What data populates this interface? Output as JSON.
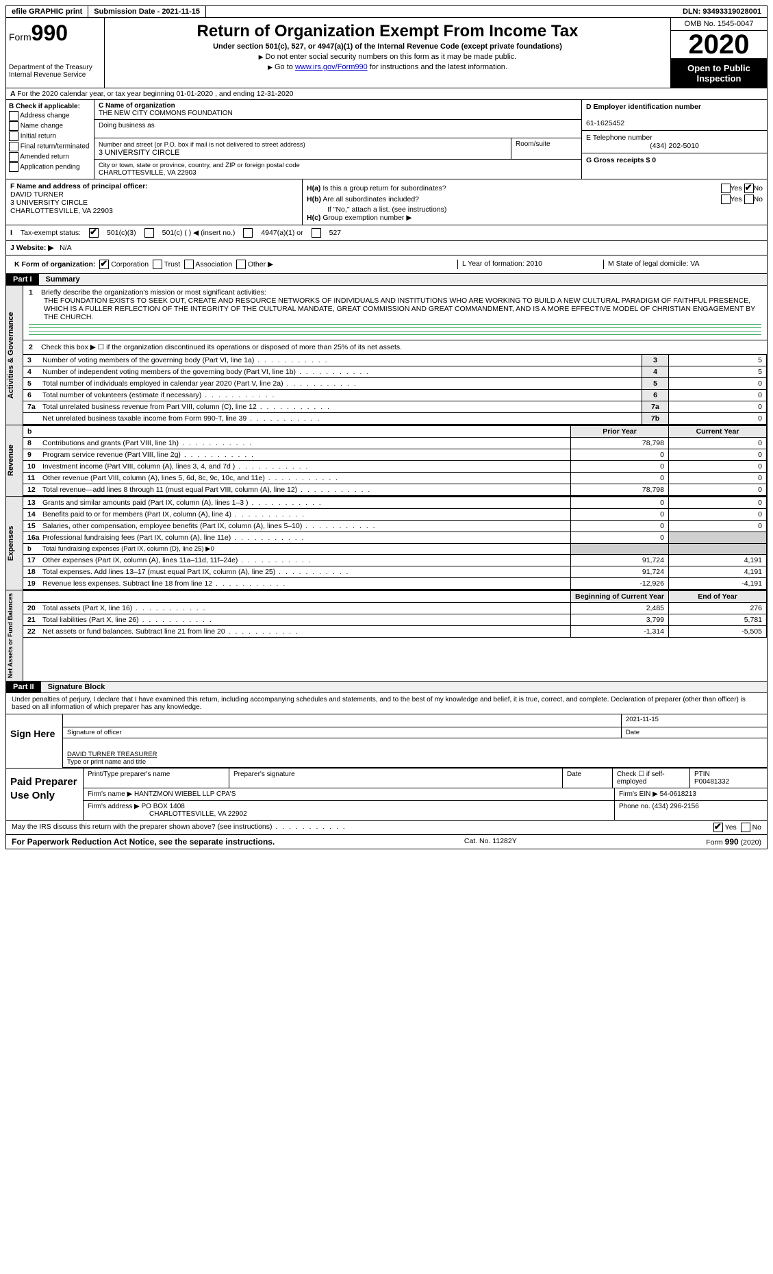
{
  "top": {
    "efile": "efile GRAPHIC print",
    "submission": "Submission Date - 2021-11-15",
    "dln": "DLN: 93493319028001"
  },
  "header": {
    "form_prefix": "Form",
    "form_no": "990",
    "dept": "Department of the Treasury\nInternal Revenue Service",
    "title": "Return of Organization Exempt From Income Tax",
    "subtitle": "Under section 501(c), 527, or 4947(a)(1) of the Internal Revenue Code (except private foundations)",
    "note1": "Do not enter social security numbers on this form as it may be made public.",
    "note2_pre": "Go to ",
    "note2_link": "www.irs.gov/Form990",
    "note2_post": " for instructions and the latest information.",
    "omb": "OMB No. 1545-0047",
    "year": "2020",
    "open": "Open to Public Inspection"
  },
  "A": "For the 2020 calendar year, or tax year beginning 01-01-2020   , and ending 12-31-2020",
  "B": {
    "hdr": "B Check if applicable:",
    "opts": [
      "Address change",
      "Name change",
      "Initial return",
      "Final return/terminated",
      "Amended return",
      "Application pending"
    ]
  },
  "C": {
    "name_lbl": "C Name of organization",
    "name": "THE NEW CITY COMMONS FOUNDATION",
    "dba_lbl": "Doing business as",
    "dba": "",
    "street_lbl": "Number and street (or P.O. box if mail is not delivered to street address)",
    "street": "3 UNIVERSITY CIRCLE",
    "suite_lbl": "Room/suite",
    "city_lbl": "City or town, state or province, country, and ZIP or foreign postal code",
    "city": "CHARLOTTESVILLE, VA  22903"
  },
  "D": {
    "lbl": "D Employer identification number",
    "val": "61-1625452"
  },
  "E": {
    "lbl": "E Telephone number",
    "val": "(434) 202-5010"
  },
  "G": {
    "lbl": "G Gross receipts $ 0"
  },
  "F": {
    "lbl": "F  Name and address of principal officer:",
    "name": "DAVID TURNER",
    "street": "3 UNIVERSITY CIRCLE",
    "city": "CHARLOTTESVILLE, VA  22903"
  },
  "H": {
    "a": "Is this a group return for subordinates?",
    "b": "Are all subordinates included?",
    "note": "If \"No,\" attach a list. (see instructions)",
    "c": "Group exemption number ▶"
  },
  "I": {
    "lbl": "Tax-exempt status:",
    "o1": "501(c)(3)",
    "o2": "501(c) (  ) ◀ (insert no.)",
    "o3": "4947(a)(1) or",
    "o4": "527"
  },
  "J": {
    "lbl": "Website: ▶",
    "val": "N/A"
  },
  "K": {
    "lbl": "K Form of organization:",
    "o1": "Corporation",
    "o2": "Trust",
    "o3": "Association",
    "o4": "Other ▶"
  },
  "L": "L Year of formation: 2010",
  "M": "M State of legal domicile: VA",
  "part1": {
    "tag": "Part I",
    "title": "Summary"
  },
  "vtabs": {
    "act": "Activities & Governance",
    "rev": "Revenue",
    "exp": "Expenses",
    "net": "Net Assets or Fund Balances"
  },
  "q1": {
    "lbl": "Briefly describe the organization's mission or most significant activities:",
    "text": "THE FOUNDATION EXISTS TO SEEK OUT, CREATE AND RESOURCE NETWORKS OF INDIVIDUALS AND INSTITUTIONS WHO ARE WORKING TO BUILD A NEW CULTURAL PARADIGM OF FAITHFUL PRESENCE, WHICH IS A FULLER REFLECTION OF THE INTEGRITY OF THE CULTURAL MANDATE, GREAT COMMISSION AND GREAT COMMANDMENT, AND IS A MORE EFFECTIVE MODEL OF CHRISTIAN ENGAGEMENT BY THE CHURCH."
  },
  "q2": "Check this box ▶ ☐  if the organization discontinued its operations or disposed of more than 25% of its net assets.",
  "rows_a": [
    {
      "n": "3",
      "lbl": "Number of voting members of the governing body (Part VI, line 1a)",
      "num": "3",
      "val": "5"
    },
    {
      "n": "4",
      "lbl": "Number of independent voting members of the governing body (Part VI, line 1b)",
      "num": "4",
      "val": "5"
    },
    {
      "n": "5",
      "lbl": "Total number of individuals employed in calendar year 2020 (Part V, line 2a)",
      "num": "5",
      "val": "0"
    },
    {
      "n": "6",
      "lbl": "Total number of volunteers (estimate if necessary)",
      "num": "6",
      "val": "0"
    },
    {
      "n": "7a",
      "lbl": "Total unrelated business revenue from Part VIII, column (C), line 12",
      "num": "7a",
      "val": "0"
    },
    {
      "n": "",
      "lbl": "Net unrelated business taxable income from Form 990-T, line 39",
      "num": "7b",
      "val": "0"
    }
  ],
  "col_hdr": {
    "b": "b",
    "prior": "Prior Year",
    "curr": "Current Year"
  },
  "rows_r": [
    {
      "n": "8",
      "lbl": "Contributions and grants (Part VIII, line 1h)",
      "p": "78,798",
      "c": "0"
    },
    {
      "n": "9",
      "lbl": "Program service revenue (Part VIII, line 2g)",
      "p": "0",
      "c": "0"
    },
    {
      "n": "10",
      "lbl": "Investment income (Part VIII, column (A), lines 3, 4, and 7d )",
      "p": "0",
      "c": "0"
    },
    {
      "n": "11",
      "lbl": "Other revenue (Part VIII, column (A), lines 5, 6d, 8c, 9c, 10c, and 11e)",
      "p": "0",
      "c": "0"
    },
    {
      "n": "12",
      "lbl": "Total revenue—add lines 8 through 11 (must equal Part VIII, column (A), line 12)",
      "p": "78,798",
      "c": "0"
    }
  ],
  "rows_e": [
    {
      "n": "13",
      "lbl": "Grants and similar amounts paid (Part IX, column (A), lines 1–3 )",
      "p": "0",
      "c": "0"
    },
    {
      "n": "14",
      "lbl": "Benefits paid to or for members (Part IX, column (A), line 4)",
      "p": "0",
      "c": "0"
    },
    {
      "n": "15",
      "lbl": "Salaries, other compensation, employee benefits (Part IX, column (A), lines 5–10)",
      "p": "0",
      "c": "0"
    },
    {
      "n": "16a",
      "lbl": "Professional fundraising fees (Part IX, column (A), line 11e)",
      "p": "0",
      "c": "",
      "grey": true
    },
    {
      "n": "b",
      "lbl": "Total fundraising expenses (Part IX, column (D), line 25) ▶0",
      "p": "",
      "c": "",
      "grey2": true,
      "small": true
    },
    {
      "n": "17",
      "lbl": "Other expenses (Part IX, column (A), lines 11a–11d, 11f–24e)",
      "p": "91,724",
      "c": "4,191"
    },
    {
      "n": "18",
      "lbl": "Total expenses. Add lines 13–17 (must equal Part IX, column (A), line 25)",
      "p": "91,724",
      "c": "4,191"
    },
    {
      "n": "19",
      "lbl": "Revenue less expenses. Subtract line 18 from line 12",
      "p": "-12,926",
      "c": "-4,191"
    }
  ],
  "col_hdr2": {
    "prior": "Beginning of Current Year",
    "curr": "End of Year"
  },
  "rows_n": [
    {
      "n": "20",
      "lbl": "Total assets (Part X, line 16)",
      "p": "2,485",
      "c": "276"
    },
    {
      "n": "21",
      "lbl": "Total liabilities (Part X, line 26)",
      "p": "3,799",
      "c": "5,781"
    },
    {
      "n": "22",
      "lbl": "Net assets or fund balances. Subtract line 21 from line 20",
      "p": "-1,314",
      "c": "-5,505"
    }
  ],
  "part2": {
    "tag": "Part II",
    "title": "Signature Block"
  },
  "sig": {
    "text": "Under penalties of perjury, I declare that I have examined this return, including accompanying schedules and statements, and to the best of my knowledge and belief, it is true, correct, and complete. Declaration of preparer (other than officer) is based on all information of which preparer has any knowledge.",
    "here": "Sign Here",
    "sig_lbl": "Signature of officer",
    "date_lbl": "Date",
    "date": "2021-11-15",
    "name": "DAVID TURNER TREASURER",
    "name_lbl": "Type or print name and title"
  },
  "paid": {
    "hdr": "Paid Preparer Use Only",
    "r1": {
      "a": "Print/Type preparer's name",
      "b": "Preparer's signature",
      "c": "Date",
      "d": "Check ☐ if self-employed",
      "e_lbl": "PTIN",
      "e": "P00481332"
    },
    "r2": {
      "a": "Firm's name    ▶ HANTZMON WIEBEL LLP CPA'S",
      "b": "Firm's EIN ▶ 54-0618213"
    },
    "r3": {
      "a": "Firm's address ▶ PO BOX 1408",
      "b": "Phone no. (434) 296-2156"
    },
    "r3b": "CHARLOTTESVILLE, VA  22902"
  },
  "discuss": {
    "q": "May the IRS discuss this return with the preparer shown above? (see instructions)",
    "yes": "Yes",
    "no": "No"
  },
  "footer": {
    "left": "For Paperwork Reduction Act Notice, see the separate instructions.",
    "mid": "Cat. No. 11282Y",
    "right": "Form 990 (2020)"
  }
}
